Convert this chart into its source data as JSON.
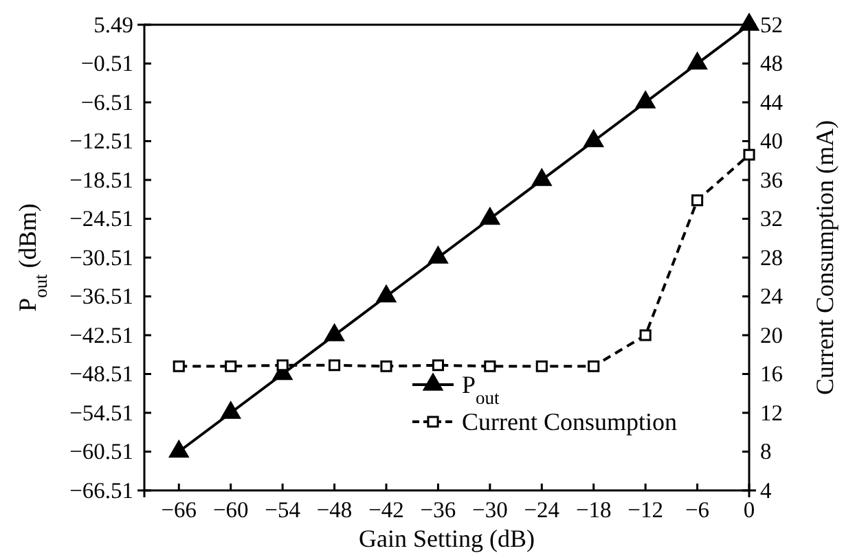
{
  "chart_data": {
    "type": "line",
    "xlabel": "Gain Setting (dB)",
    "ylabel": "P$_{out}$ (dBm)",
    "y2label": "Current Consumption (mA)",
    "x": [
      -66,
      -60,
      -54,
      -48,
      -42,
      -36,
      -30,
      -24,
      -18,
      -12,
      -6,
      0
    ],
    "xlim": [
      -70,
      0
    ],
    "xticks": [
      -66,
      -60,
      -54,
      -48,
      -42,
      -36,
      -30,
      -24,
      -18,
      -12,
      -6,
      0
    ],
    "ylim": [
      -66.51,
      5.49
    ],
    "yticks": [
      -66.51,
      -60.51,
      -54.51,
      -48.51,
      -42.51,
      -36.51,
      -30.51,
      -24.51,
      -18.51,
      -12.51,
      -6.51,
      -0.51,
      5.49
    ],
    "y2lim": [
      4,
      52
    ],
    "y2ticks": [
      4,
      8,
      12,
      16,
      20,
      24,
      28,
      32,
      36,
      40,
      44,
      48,
      52
    ],
    "legend": "bottom right",
    "grid": false,
    "series": [
      {
        "name": "P$_{out}$",
        "color": "#000000",
        "marker": "triangle",
        "line_style": "solid",
        "values": [
          -60.51,
          -54.51,
          -48.51,
          -42.51,
          -36.51,
          -30.51,
          -24.51,
          -18.51,
          -12.51,
          -6.51,
          -0.51,
          5.49
        ]
      },
      {
        "name": "Current Consumption",
        "color": "#000000",
        "marker": "square",
        "line_style": "dashed",
        "axis": "y2",
        "values": [
          16.8,
          16.8,
          16.9,
          16.9,
          16.8,
          16.9,
          16.8,
          16.8,
          16.8,
          20,
          33.9,
          38.6
        ]
      }
    ]
  }
}
